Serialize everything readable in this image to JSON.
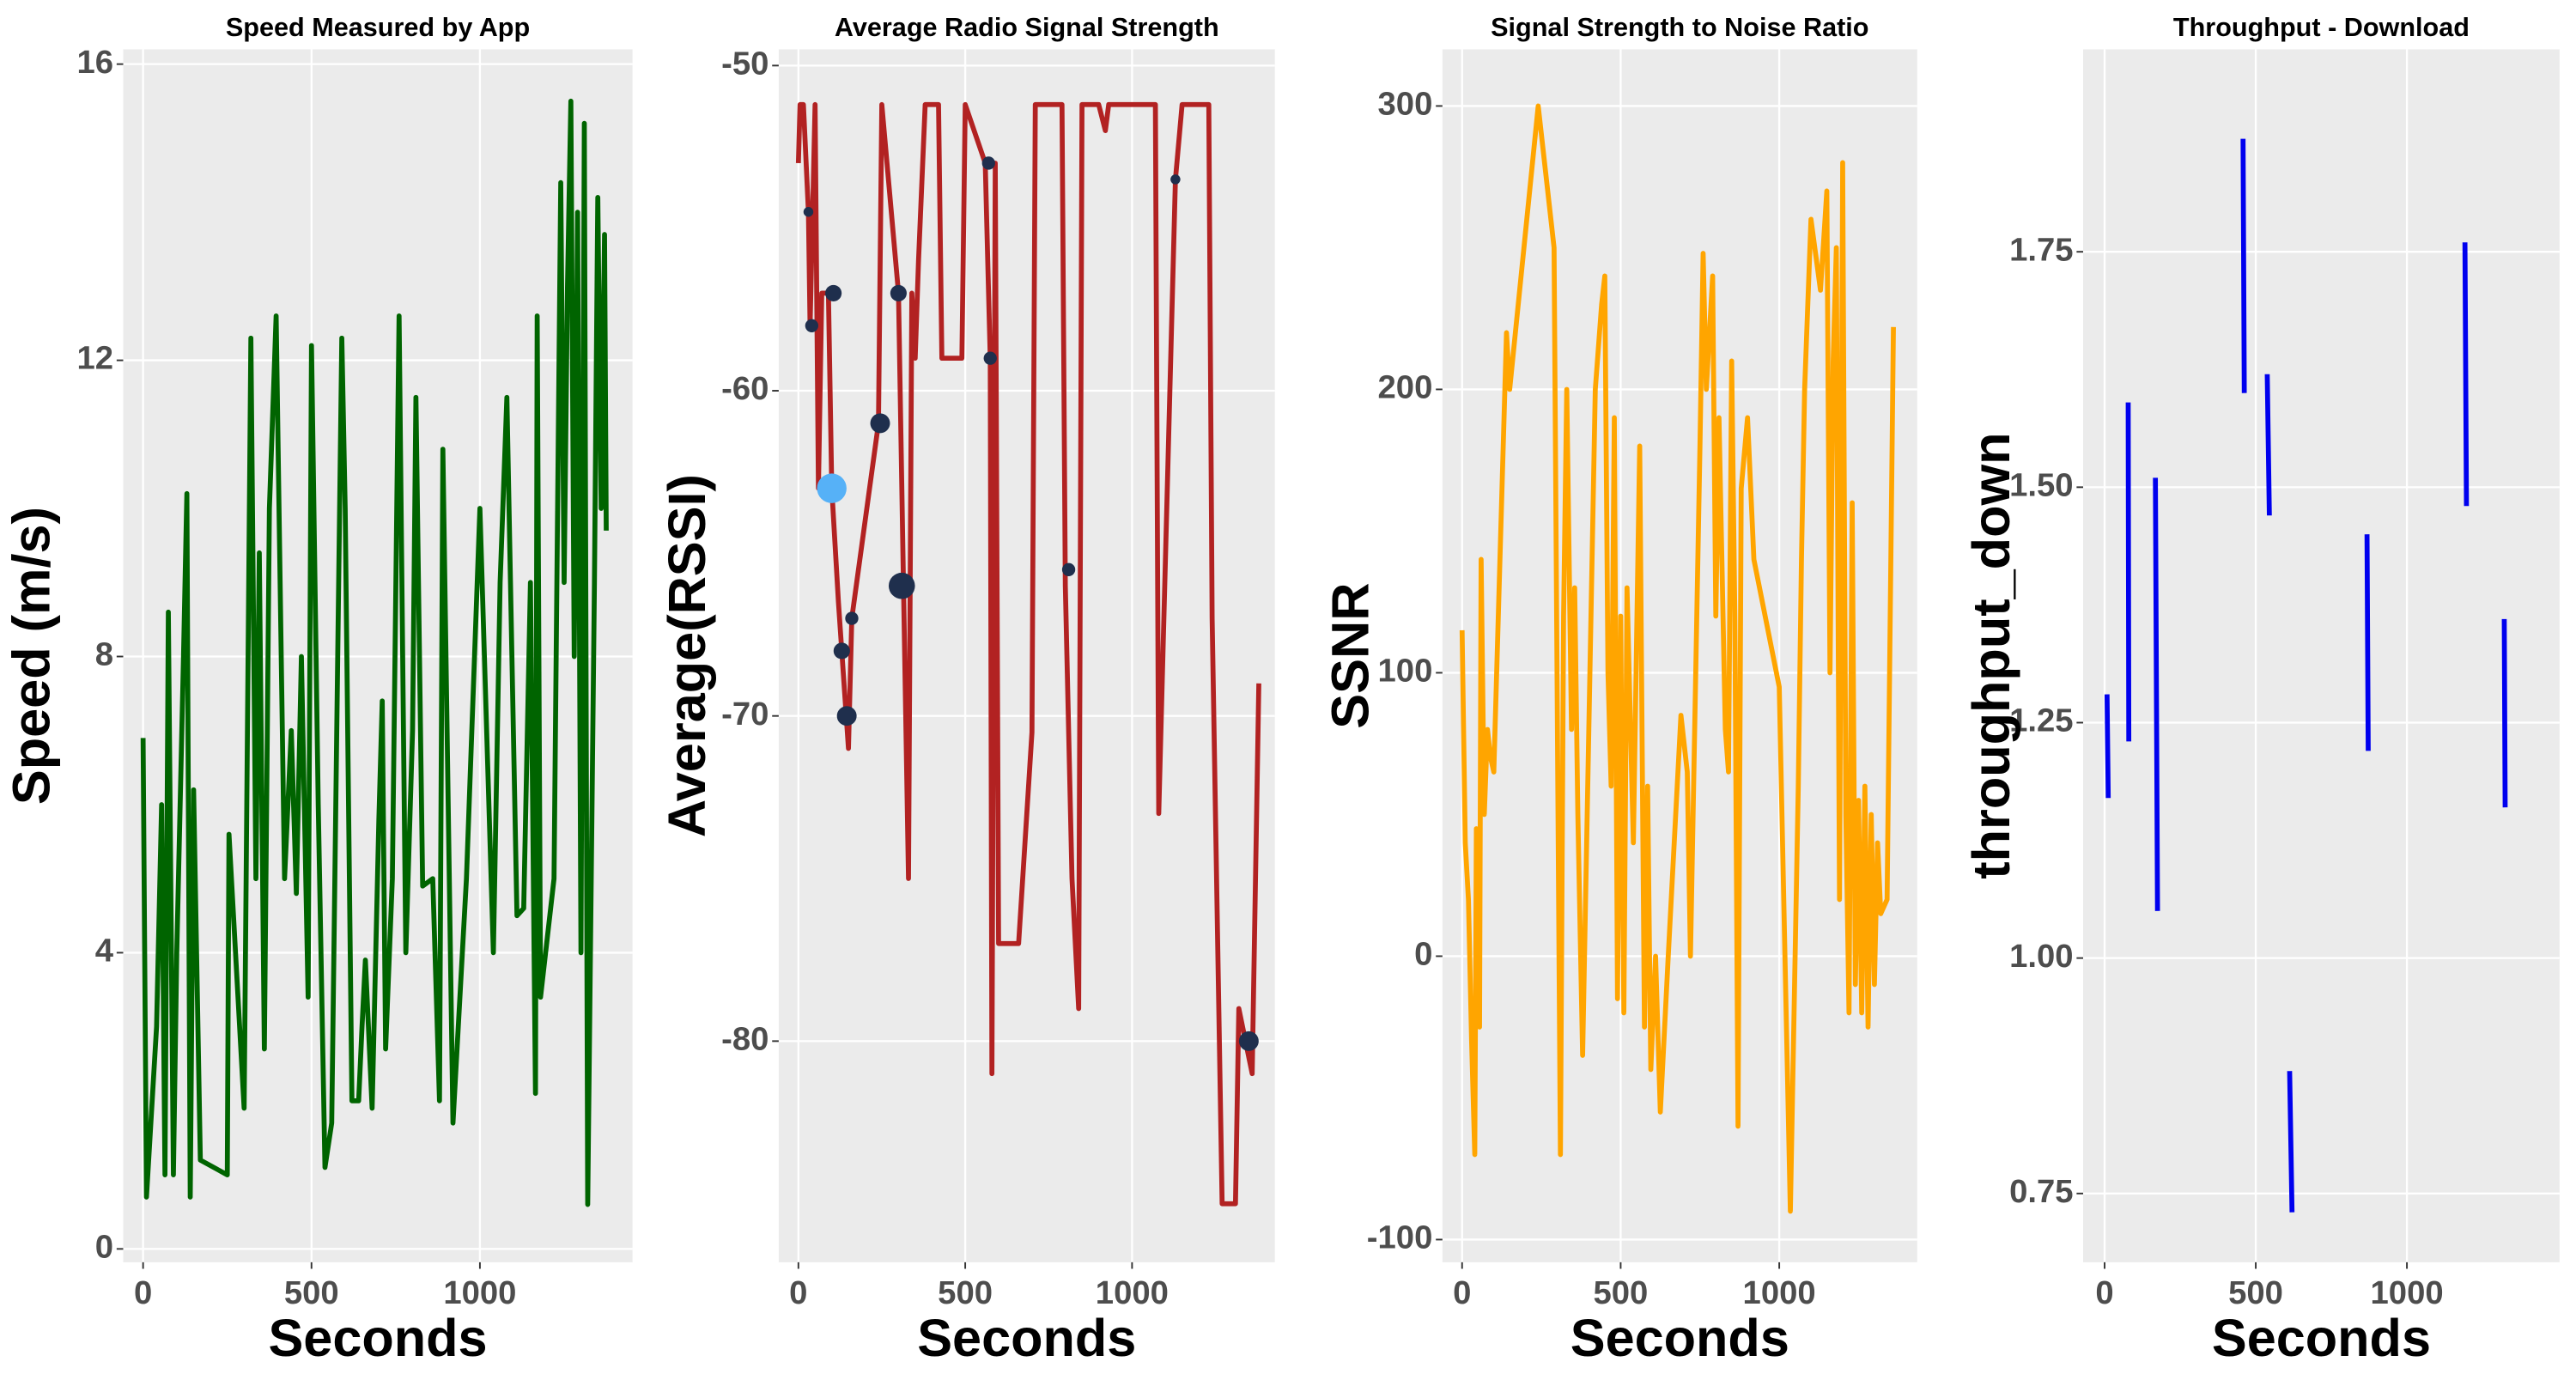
{
  "chart_data": [
    {
      "type": "line",
      "title": "Speed Measured by App",
      "x_label": "Seconds",
      "y_label": "Speed (m/s)",
      "color": "#006400",
      "grid": true,
      "xlim": [
        -59,
        1453
      ],
      "ylim": [
        -0.18,
        16.2
      ],
      "xticks": [
        0,
        500,
        1000
      ],
      "yticks": [
        0,
        4,
        8,
        12,
        16
      ],
      "x": [
        0,
        10,
        40,
        55,
        65,
        75,
        90,
        100,
        120,
        130,
        140,
        150,
        170,
        250,
        255,
        300,
        320,
        335,
        345,
        360,
        375,
        395,
        420,
        440,
        455,
        470,
        490,
        500,
        520,
        540,
        560,
        590,
        600,
        620,
        640,
        650,
        660,
        680,
        700,
        710,
        720,
        740,
        760,
        780,
        800,
        810,
        830,
        860,
        880,
        890,
        920,
        960,
        1000,
        1020,
        1040,
        1060,
        1080,
        1110,
        1130,
        1150,
        1165,
        1170,
        1180,
        1200,
        1220,
        1240,
        1250,
        1260,
        1270,
        1280,
        1290,
        1300,
        1310,
        1320,
        1340,
        1350,
        1360,
        1370,
        1375
      ],
      "values": [
        6.9,
        0.7,
        3,
        6,
        1,
        8.6,
        1,
        4,
        8,
        10.2,
        0.7,
        6.2,
        1.2,
        1,
        5.6,
        1.9,
        12.3,
        5,
        9.4,
        2.7,
        10,
        12.6,
        5,
        7,
        4.8,
        8,
        3.4,
        12.2,
        6,
        1.1,
        1.7,
        12.3,
        10,
        2,
        2,
        3,
        3.9,
        1.9,
        5.8,
        7.4,
        2.7,
        5,
        12.6,
        4,
        7,
        11.5,
        4.9,
        5,
        2,
        10.8,
        1.7,
        5,
        10,
        7,
        4,
        9,
        11.5,
        4.5,
        4.6,
        9,
        2.1,
        12.6,
        3.4,
        4.2,
        5,
        14.4,
        9,
        13,
        15.5,
        8,
        14,
        4,
        15.2,
        0.6,
        9,
        14.2,
        10,
        13.7,
        9.7
      ]
    },
    {
      "type": "line",
      "title": "Average Radio Signal Strength",
      "x_label": "Seconds",
      "y_label": "Average(RSSI)",
      "color": "#b22222",
      "grid": true,
      "xlim": [
        -59,
        1428
      ],
      "ylim": [
        -86.8,
        -49.5
      ],
      "xticks": [
        0,
        500,
        1000
      ],
      "yticks": [
        -80,
        -70,
        -60,
        -50
      ],
      "x": [
        0,
        5,
        15,
        30,
        35,
        50,
        60,
        70,
        90,
        100,
        120,
        130,
        150,
        160,
        240,
        250,
        300,
        330,
        340,
        350,
        360,
        380,
        420,
        430,
        490,
        500,
        560,
        575,
        580,
        590,
        600,
        660,
        700,
        710,
        790,
        800,
        820,
        840,
        850,
        900,
        920,
        930,
        1070,
        1080,
        1130,
        1150,
        1230,
        1240,
        1270,
        1310,
        1320,
        1340,
        1360,
        1380
      ],
      "values": [
        -53,
        -51.2,
        -51.2,
        -54.5,
        -58,
        -51.2,
        -63,
        -57,
        -57,
        -63,
        -66.5,
        -68,
        -71,
        -67,
        -61,
        -51.2,
        -57,
        -75,
        -57,
        -59,
        -56,
        -51.2,
        -51.2,
        -59,
        -59,
        -51.2,
        -53,
        -59,
        -81,
        -53,
        -77,
        -77,
        -70.5,
        -51.2,
        -51.2,
        -66,
        -75,
        -79,
        -51.2,
        -51.2,
        -52,
        -51.2,
        -51.2,
        -73,
        -53.5,
        -51.2,
        -51.2,
        -67,
        -85,
        -85,
        -79,
        -80,
        -81,
        -69
      ],
      "points": {
        "x": [
          30,
          40,
          100,
          105,
          130,
          145,
          160,
          245,
          300,
          310,
          570,
          575,
          810,
          1130,
          1350
        ],
        "values": [
          -54.5,
          -58,
          -63,
          -57,
          -68,
          -70,
          -67,
          -61,
          -57,
          -66,
          -53,
          -59,
          -65.5,
          -53.5,
          -80
        ],
        "sizes": [
          3,
          4,
          9,
          5,
          5,
          6,
          4,
          6,
          5,
          8,
          4,
          4,
          4,
          3,
          6
        ],
        "colors": [
          "#1f2f4d",
          "#1f2f4d",
          "#56b1f7",
          "#1f2f4d",
          "#1f2f4d",
          "#1f2f4d",
          "#1f2f4d",
          "#1f2f4d",
          "#1f2f4d",
          "#1f2f4d",
          "#1f2f4d",
          "#1f2f4d",
          "#1f2f4d",
          "#1f2f4d",
          "#1f2f4d"
        ]
      }
    },
    {
      "type": "line",
      "title": "Signal Strength to Noise Ratio",
      "x_label": "Seconds",
      "y_label": "SSNR",
      "color": "#ffa500",
      "grid": true,
      "xlim": [
        -62,
        1435
      ],
      "ylim": [
        -108,
        320
      ],
      "xticks": [
        0,
        500,
        1000
      ],
      "yticks": [
        -100,
        0,
        100,
        200,
        300
      ],
      "x": [
        0,
        10,
        20,
        30,
        40,
        45,
        55,
        60,
        70,
        80,
        90,
        100,
        140,
        150,
        240,
        290,
        310,
        320,
        330,
        345,
        355,
        365,
        380,
        420,
        440,
        450,
        460,
        470,
        480,
        490,
        500,
        510,
        520,
        540,
        560,
        575,
        585,
        595,
        610,
        625,
        650,
        690,
        710,
        720,
        750,
        760,
        770,
        790,
        800,
        810,
        830,
        840,
        850,
        860,
        870,
        880,
        900,
        920,
        1000,
        1035,
        1060,
        1070,
        1080,
        1100,
        1130,
        1150,
        1160,
        1170,
        1180,
        1190,
        1200,
        1210,
        1220,
        1230,
        1240,
        1250,
        1260,
        1270,
        1280,
        1290,
        1300,
        1310,
        1320,
        1340,
        1360
      ],
      "values": [
        115,
        40,
        20,
        -30,
        -70,
        45,
        -25,
        140,
        50,
        80,
        70,
        65,
        220,
        200,
        300,
        250,
        -70,
        120,
        200,
        80,
        130,
        50,
        -35,
        200,
        230,
        240,
        100,
        60,
        190,
        -15,
        120,
        -20,
        130,
        40,
        180,
        -25,
        60,
        -40,
        0,
        -55,
        0,
        85,
        65,
        0,
        180,
        248,
        200,
        240,
        120,
        190,
        80,
        65,
        210,
        120,
        -60,
        165,
        190,
        140,
        95,
        -90,
        60,
        140,
        200,
        260,
        235,
        270,
        100,
        210,
        250,
        20,
        280,
        50,
        -20,
        160,
        -10,
        55,
        -20,
        60,
        -25,
        50,
        -10,
        40,
        15,
        20,
        222
      ]
    },
    {
      "type": "line",
      "title": "Throughput - Download",
      "x_label": "Seconds",
      "y_label": "throughput_down",
      "color": "#0000ee",
      "grid": true,
      "xlim": [
        -71,
        1505
      ],
      "ylim": [
        0.677,
        1.965
      ],
      "xticks": [
        0,
        500,
        1000
      ],
      "yticks": [
        0.75,
        {
          "value": 1,
          "label": "1.00"
        },
        1.25,
        {
          "value": 1.5,
          "label": "1.50"
        },
        1.75
      ],
      "x": [
        8,
        12,
        null,
        78,
        80,
        null,
        168,
        175,
        null,
        458,
        462,
        null,
        538,
        545,
        null,
        612,
        620,
        null,
        868,
        872,
        null,
        1192,
        1197,
        null,
        1322,
        1325
      ],
      "values": [
        1.28,
        1.17,
        null,
        1.59,
        1.23,
        null,
        1.51,
        1.05,
        null,
        1.87,
        1.6,
        null,
        1.62,
        1.47,
        null,
        0.88,
        0.73,
        null,
        1.45,
        1.22,
        null,
        1.76,
        1.48,
        null,
        1.36,
        1.16
      ]
    }
  ]
}
